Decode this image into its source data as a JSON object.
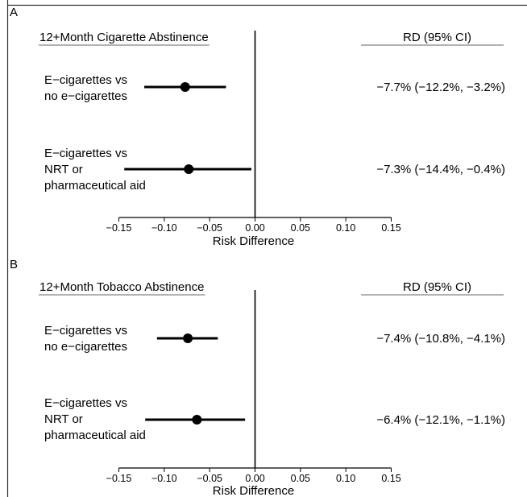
{
  "chart_data": [
    {
      "type": "forest",
      "panel_label": "A",
      "outcome_header": "12+Month Cigarette Abstinence",
      "estimate_header": "RD (95% CI)",
      "xlabel": "Risk Difference",
      "xlim": [
        -0.15,
        0.15
      ],
      "xticks": [
        "-0.15",
        "-0.10",
        "-0.05",
        "0.00",
        "0.05",
        "0.10",
        "0.15"
      ],
      "xtick_values": [
        -0.15,
        -0.1,
        -0.05,
        0.0,
        0.05,
        0.1,
        0.15
      ],
      "reference_line": 0,
      "rows": [
        {
          "label_lines": [
            "E−cigarettes vs",
            "no e−cigarettes"
          ],
          "estimate": -0.077,
          "lower": -0.122,
          "upper": -0.032,
          "ci_text": "−7.7% (−12.2%, −3.2%)"
        },
        {
          "label_lines": [
            "E−cigarettes vs",
            "NRT or",
            "pharmaceutical aid"
          ],
          "estimate": -0.073,
          "lower": -0.144,
          "upper": -0.004,
          "ci_text": "−7.3% (−14.4%, −0.4%)"
        }
      ]
    },
    {
      "type": "forest",
      "panel_label": "B",
      "outcome_header": "12+Month Tobacco Abstinence",
      "estimate_header": "RD (95% CI)",
      "xlabel": "Risk Difference",
      "xlim": [
        -0.15,
        0.15
      ],
      "xticks": [
        "-0.15",
        "-0.10",
        "-0.05",
        "0.00",
        "0.05",
        "0.10",
        "0.15"
      ],
      "xtick_values": [
        -0.15,
        -0.1,
        -0.05,
        0.0,
        0.05,
        0.1,
        0.15
      ],
      "reference_line": 0,
      "rows": [
        {
          "label_lines": [
            "E−cigarettes vs",
            "no e−cigarettes"
          ],
          "estimate": -0.074,
          "lower": -0.108,
          "upper": -0.041,
          "ci_text": "−7.4% (−10.8%, −4.1%)"
        },
        {
          "label_lines": [
            "E−cigarettes vs",
            "NRT or",
            "pharmaceutical aid"
          ],
          "estimate": -0.064,
          "lower": -0.121,
          "upper": -0.011,
          "ci_text": "−6.4% (−12.1%, −1.1%)"
        }
      ]
    }
  ]
}
